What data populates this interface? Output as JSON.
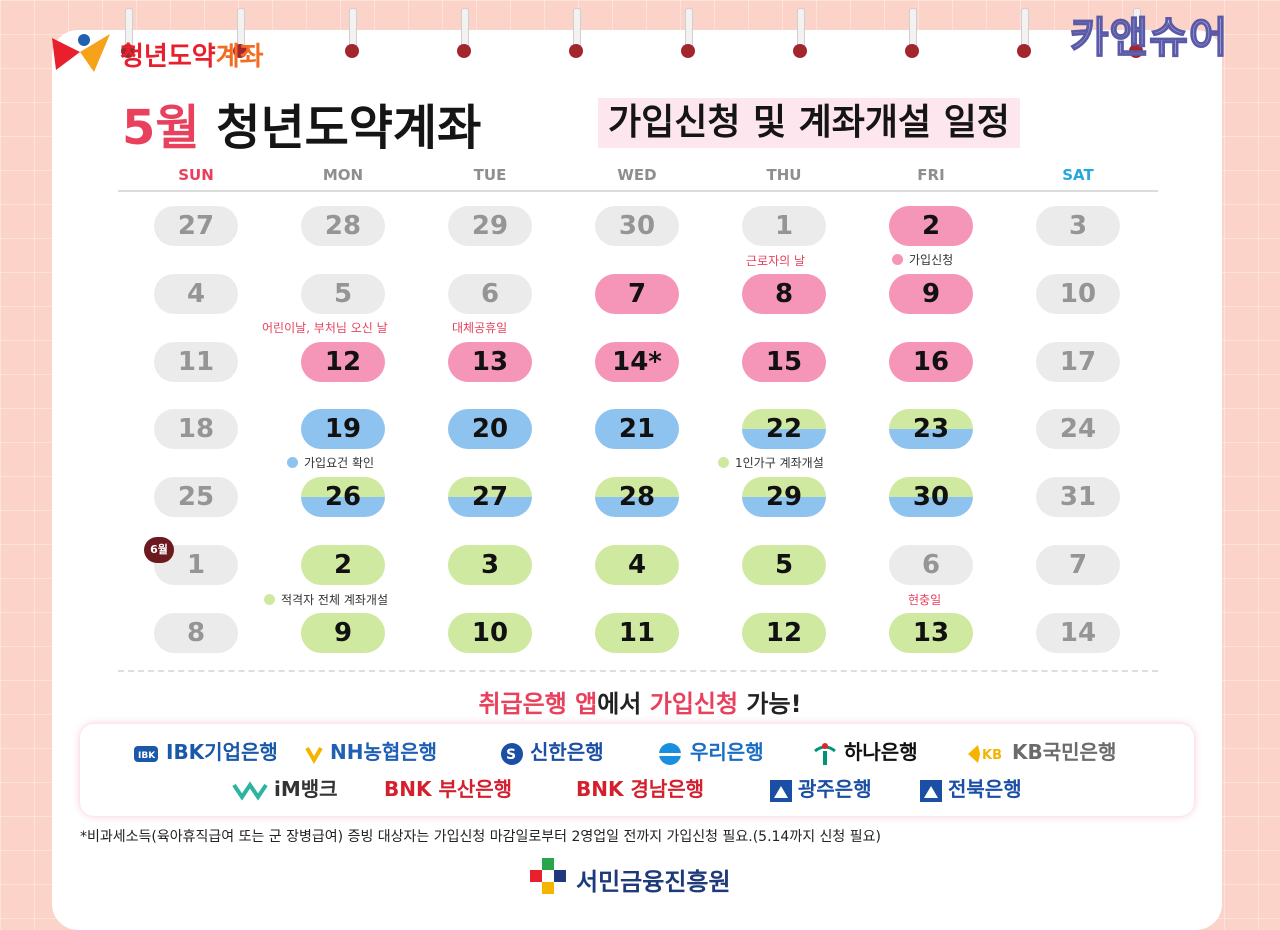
{
  "logo": {
    "text_a": "청년도약",
    "text_b": "계좌",
    "color_a": "#e8202e",
    "color_b": "#f26d21"
  },
  "watermark": "카앤슈어",
  "title": {
    "month": "5월",
    "name": "청년도약계좌",
    "subtitle": "가입신청 및 계좌개설 일정"
  },
  "weekdays": [
    "SUN",
    "MON",
    "TUE",
    "WED",
    "THU",
    "FRI",
    "SAT"
  ],
  "weeks": [
    [
      {
        "d": "27",
        "s": "gray"
      },
      {
        "d": "28",
        "s": "gray"
      },
      {
        "d": "29",
        "s": "gray"
      },
      {
        "d": "30",
        "s": "gray"
      },
      {
        "d": "1",
        "s": "gray"
      },
      {
        "d": "2",
        "s": "pink"
      },
      {
        "d": "3",
        "s": "gray"
      }
    ],
    [
      {
        "d": "4",
        "s": "gray"
      },
      {
        "d": "5",
        "s": "gray"
      },
      {
        "d": "6",
        "s": "gray"
      },
      {
        "d": "7",
        "s": "pink"
      },
      {
        "d": "8",
        "s": "pink"
      },
      {
        "d": "9",
        "s": "pink"
      },
      {
        "d": "10",
        "s": "gray"
      }
    ],
    [
      {
        "d": "11",
        "s": "gray"
      },
      {
        "d": "12",
        "s": "pink"
      },
      {
        "d": "13",
        "s": "pink"
      },
      {
        "d": "14*",
        "s": "pink"
      },
      {
        "d": "15",
        "s": "pink"
      },
      {
        "d": "16",
        "s": "pink"
      },
      {
        "d": "17",
        "s": "gray"
      }
    ],
    [
      {
        "d": "18",
        "s": "gray"
      },
      {
        "d": "19",
        "s": "blue"
      },
      {
        "d": "20",
        "s": "blue"
      },
      {
        "d": "21",
        "s": "blue"
      },
      {
        "d": "22",
        "s": "split"
      },
      {
        "d": "23",
        "s": "split"
      },
      {
        "d": "24",
        "s": "gray"
      }
    ],
    [
      {
        "d": "25",
        "s": "gray"
      },
      {
        "d": "26",
        "s": "split"
      },
      {
        "d": "27",
        "s": "split"
      },
      {
        "d": "28",
        "s": "split"
      },
      {
        "d": "29",
        "s": "split"
      },
      {
        "d": "30",
        "s": "split"
      },
      {
        "d": "31",
        "s": "gray"
      }
    ],
    [
      {
        "d": "1",
        "s": "gray"
      },
      {
        "d": "2",
        "s": "green"
      },
      {
        "d": "3",
        "s": "green"
      },
      {
        "d": "4",
        "s": "green"
      },
      {
        "d": "5",
        "s": "green"
      },
      {
        "d": "6",
        "s": "gray"
      },
      {
        "d": "7",
        "s": "gray"
      }
    ],
    [
      {
        "d": "8",
        "s": "gray"
      },
      {
        "d": "9",
        "s": "green"
      },
      {
        "d": "10",
        "s": "green"
      },
      {
        "d": "11",
        "s": "green"
      },
      {
        "d": "12",
        "s": "green"
      },
      {
        "d": "13",
        "s": "green"
      },
      {
        "d": "14",
        "s": "gray"
      }
    ]
  ],
  "june_badge": "6월",
  "notes": {
    "labor_day": "근로자의 날",
    "signup": "가입신청",
    "children_day": "어린이날, 부처님 오신 날",
    "substitute": "대체공휴일",
    "eligibility": "가입요건 확인",
    "single_household": "1인가구 계좌개설",
    "all_eligible": "적격자 전체 계좌개설",
    "memorial_day": "현충일"
  },
  "available": {
    "a": "취급은행 앱",
    "b": "에서 ",
    "c": "가입신청",
    "d": " 가능!"
  },
  "banks": [
    "IBK기업은행",
    "NH농협은행",
    "신한은행",
    "우리은행",
    "하나은행",
    "KB국민은행",
    "iM뱅크",
    "BNK 부산은행",
    "BNK 경남은행",
    "광주은행",
    "전북은행"
  ],
  "footnote": "*비과세소득(육아휴직급여 또는 군 장병급여) 증빙 대상자는 가입신청 마감일로부터 2영업일 전까지 가입신청 필요.(5.14까지 신청 필요)",
  "agency": "서민금융진흥원"
}
